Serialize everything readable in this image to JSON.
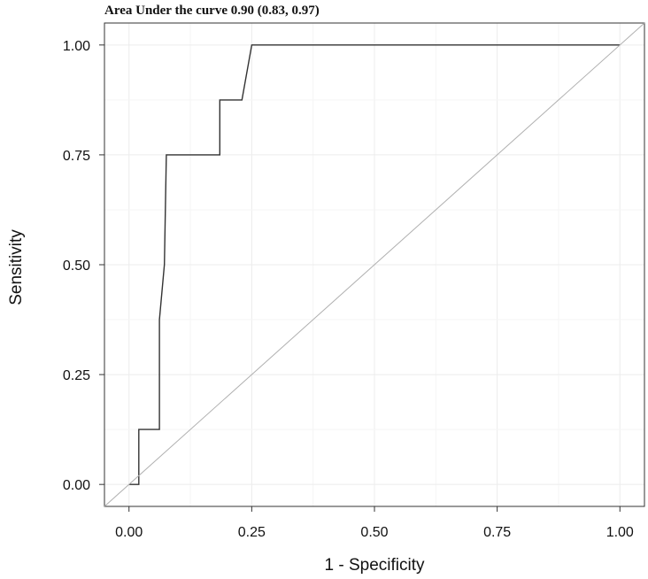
{
  "chart_data": {
    "type": "line",
    "title": "Area Under the curve 0.90 (0.83, 0.97)",
    "xlabel": "1 - Specificity",
    "ylabel": "Sensitivity",
    "xlim": [
      -0.05,
      1.05
    ],
    "ylim": [
      -0.05,
      1.05
    ],
    "x_ticks": [
      0.0,
      0.25,
      0.5,
      0.75,
      1.0
    ],
    "x_tick_labels": [
      "0.00",
      "0.25",
      "0.50",
      "0.75",
      "1.00"
    ],
    "y_ticks": [
      0.0,
      0.25,
      0.5,
      0.75,
      1.0
    ],
    "y_tick_labels": [
      "0.00",
      "0.25",
      "0.50",
      "0.75",
      "1.00"
    ],
    "grid": true,
    "series": [
      {
        "color": "#333333",
        "points": [
          [
            0.0,
            0.0
          ],
          [
            0.02,
            0.0
          ],
          [
            0.02,
            0.125
          ],
          [
            0.062,
            0.125
          ],
          [
            0.062,
            0.375
          ],
          [
            0.072,
            0.5
          ],
          [
            0.076,
            0.75
          ],
          [
            0.185,
            0.75
          ],
          [
            0.185,
            0.875
          ],
          [
            0.23,
            0.875
          ],
          [
            0.25,
            1.0
          ],
          [
            1.0,
            1.0
          ]
        ]
      },
      {
        "color": "#b0b0b0",
        "points": [
          [
            -0.05,
            -0.05
          ],
          [
            1.05,
            1.05
          ]
        ]
      }
    ]
  }
}
